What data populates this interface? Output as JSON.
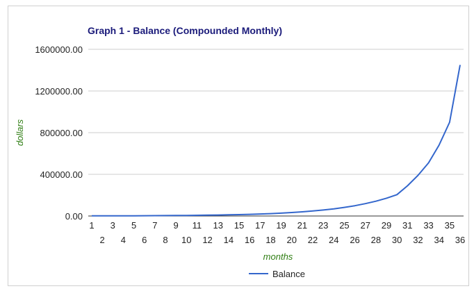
{
  "chart_data": {
    "type": "line",
    "title": "Graph 1 - Balance (Compounded Monthly)",
    "xlabel": "months",
    "ylabel": "dollars",
    "x": [
      1,
      2,
      3,
      4,
      5,
      6,
      7,
      8,
      9,
      10,
      11,
      12,
      13,
      14,
      15,
      16,
      17,
      18,
      19,
      20,
      21,
      22,
      23,
      24,
      25,
      26,
      27,
      28,
      29,
      30,
      31,
      32,
      33,
      34,
      35,
      36
    ],
    "xlim": [
      1,
      36
    ],
    "ylim": [
      0,
      1600000
    ],
    "y_ticks": [
      "0.00",
      "400000.00",
      "800000.00",
      "1200000.00",
      "1600000.00"
    ],
    "y_tick_values": [
      0,
      400000,
      800000,
      1200000,
      1600000
    ],
    "grid": true,
    "legend_position": "bottom",
    "series": [
      {
        "name": "Balance",
        "color": "#3366cc",
        "values": [
          1100,
          1300,
          1550,
          1850,
          2200,
          2650,
          3150,
          3800,
          4500,
          5400,
          6500,
          7800,
          9300,
          11200,
          13400,
          16000,
          19200,
          23000,
          27600,
          33100,
          39700,
          47700,
          57200,
          68600,
          82400,
          98800,
          118600,
          142300,
          170800,
          205000,
          290000,
          390000,
          510000,
          680000,
          900000,
          1450000
        ]
      }
    ]
  }
}
